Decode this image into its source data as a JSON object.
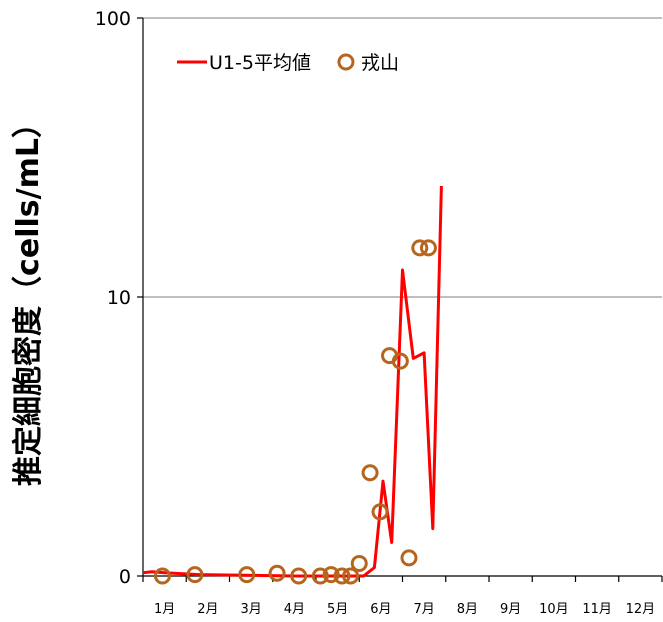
{
  "chart_data": {
    "type": "line",
    "ylabel": "推定細胞密度（cells/mL）",
    "yscale": "symlog",
    "ylim": [
      0,
      100
    ],
    "yticks": [
      {
        "value": 0,
        "label": "0"
      },
      {
        "value": 10,
        "label": "10"
      },
      {
        "value": 100,
        "label": "100"
      }
    ],
    "xlim": [
      0,
      12
    ],
    "xticks": [
      "1月",
      "2月",
      "3月",
      "4月",
      "5月",
      "6月",
      "7月",
      "8月",
      "9月",
      "10月",
      "11月",
      "12月"
    ],
    "grid": "horizontal",
    "legend": "top-left",
    "series": [
      {
        "name": "U1-5平均値",
        "kind": "line",
        "color": "#ff0000",
        "x": [
          0.0,
          0.2,
          0.5,
          1.3,
          2.6,
          3.5,
          4.6,
          5.1,
          5.35,
          5.55,
          5.75,
          6.0,
          6.25,
          6.5,
          6.7,
          6.9
        ],
        "y": [
          0.12,
          0.15,
          0.12,
          0.05,
          0.02,
          0.0,
          0.0,
          0.0,
          0.3,
          3.4,
          1.2,
          12.5,
          7.8,
          8.0,
          1.7,
          25.0
        ]
      },
      {
        "name": "戎山",
        "kind": "marker",
        "color": "#b5651d",
        "x": [
          0.45,
          1.2,
          2.4,
          3.1,
          3.6,
          4.1,
          4.35,
          4.6,
          4.8,
          5.0,
          5.25,
          5.48,
          5.7,
          5.95,
          6.15,
          6.4,
          6.6
        ],
        "y": [
          0.0,
          0.05,
          0.05,
          0.1,
          0.0,
          0.0,
          0.05,
          0.0,
          0.0,
          0.45,
          3.7,
          2.3,
          7.9,
          7.7,
          0.65,
          15.0,
          15.0
        ]
      }
    ]
  }
}
